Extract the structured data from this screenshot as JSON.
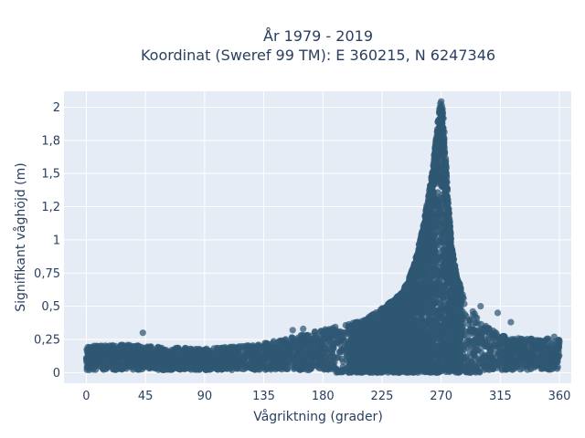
{
  "chart_data": {
    "type": "scatter",
    "title_line1": "År 1979 - 2019",
    "title_line2": "Koordinat (Sweref 99 TM): E 360215, N 6247346",
    "xlabel": "Vågriktning (grader)",
    "ylabel": "Signifikant våghöjd (m)",
    "xlim": [
      -17,
      369
    ],
    "ylim": [
      -0.08,
      2.12
    ],
    "x_ticks": [
      0,
      45,
      90,
      135,
      180,
      225,
      270,
      315,
      360
    ],
    "x_tick_labels": [
      "0",
      "45",
      "90",
      "135",
      "180",
      "225",
      "270",
      "315",
      "360"
    ],
    "y_ticks": [
      0,
      0.25,
      0.5,
      0.75,
      1,
      1.25,
      1.5,
      1.75,
      2
    ],
    "y_tick_labels": [
      "0",
      "0,25",
      "0,5",
      "0,75",
      "1",
      "1,2",
      "1,5",
      "1,8",
      "2"
    ],
    "grid": true,
    "marker_color": "#2f5873",
    "envelope": {
      "direction": [
        0,
        30,
        60,
        90,
        120,
        150,
        170,
        190,
        200,
        210,
        220,
        230,
        240,
        245,
        250,
        255,
        258,
        261,
        263,
        265,
        267,
        268,
        269,
        270,
        271,
        272,
        273,
        275,
        278,
        282,
        290,
        300,
        315,
        330,
        345,
        360
      ],
      "max_height": [
        0.2,
        0.21,
        0.19,
        0.18,
        0.2,
        0.25,
        0.3,
        0.35,
        0.37,
        0.39,
        0.45,
        0.52,
        0.6,
        0.7,
        0.83,
        1.05,
        1.2,
        1.38,
        1.52,
        1.68,
        1.85,
        1.95,
        2.02,
        2.05,
        2.0,
        1.9,
        1.7,
        1.35,
        0.95,
        0.72,
        0.52,
        0.38,
        0.28,
        0.26,
        0.26,
        0.25
      ],
      "min_height": 0.0
    },
    "outliers": [
      {
        "x": 43,
        "y": 0.3
      },
      {
        "x": 157,
        "y": 0.32
      },
      {
        "x": 165,
        "y": 0.33
      },
      {
        "x": 174,
        "y": 0.31
      },
      {
        "x": 300,
        "y": 0.5
      },
      {
        "x": 313,
        "y": 0.45
      },
      {
        "x": 323,
        "y": 0.38
      },
      {
        "x": 356,
        "y": 0.27
      }
    ]
  }
}
